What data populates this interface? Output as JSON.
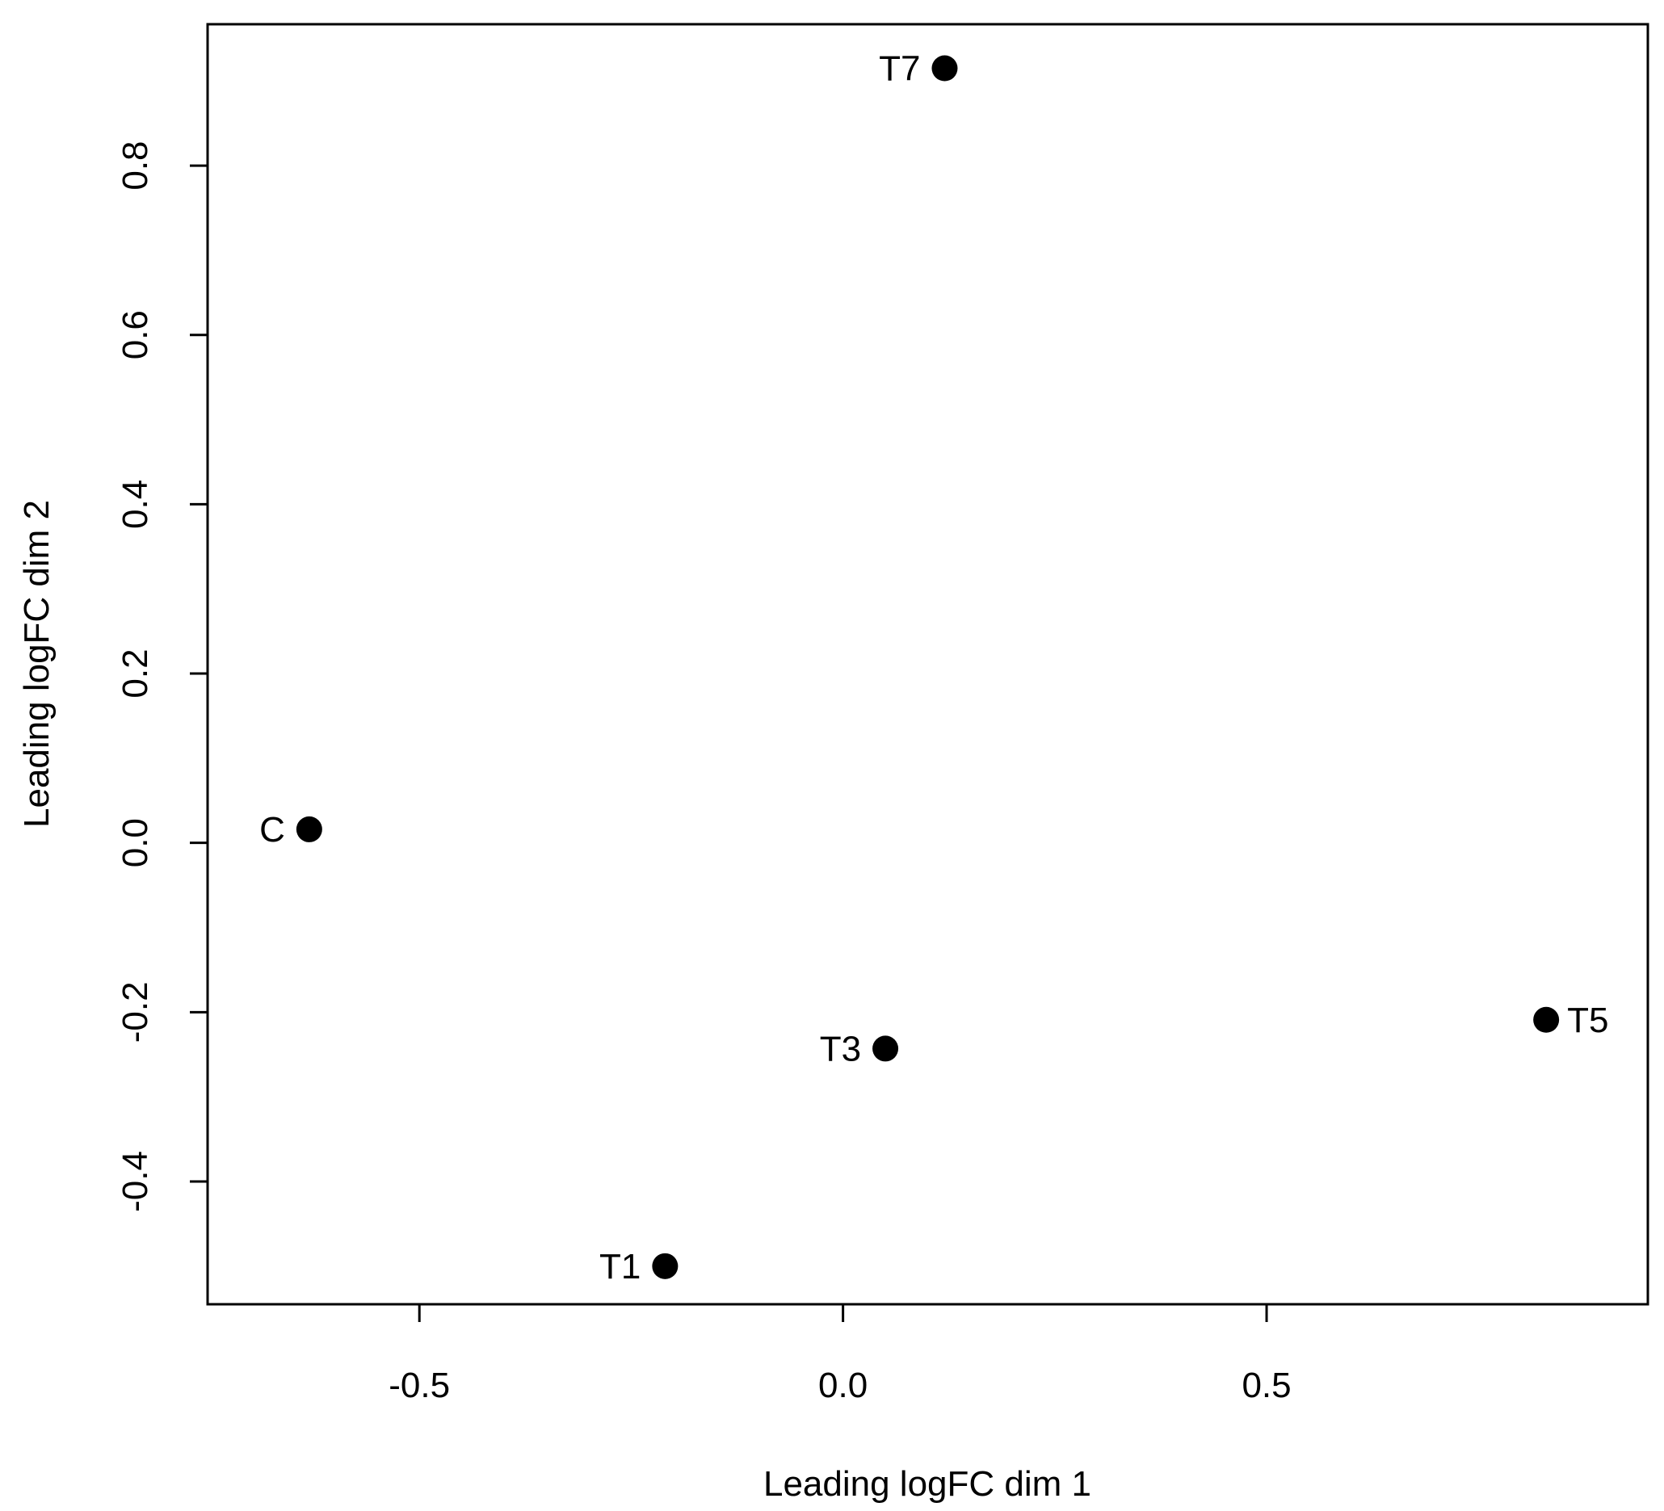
{
  "chart_data": {
    "type": "scatter",
    "title": "",
    "xlabel": "Leading logFC dim 1",
    "ylabel": "Leading logFC dim 2",
    "xlim": [
      -0.75,
      0.95
    ],
    "ylim": [
      -0.545,
      0.967
    ],
    "x_ticks": [
      {
        "value": -0.5,
        "label": "-0.5"
      },
      {
        "value": 0.0,
        "label": "0.0"
      },
      {
        "value": 0.5,
        "label": "0.5"
      }
    ],
    "y_ticks": [
      {
        "value": -0.4,
        "label": "-0.4"
      },
      {
        "value": -0.2,
        "label": "-0.2"
      },
      {
        "value": 0.0,
        "label": "0.0"
      },
      {
        "value": 0.2,
        "label": "0.2"
      },
      {
        "value": 0.4,
        "label": "0.4"
      },
      {
        "value": 0.6,
        "label": "0.6"
      },
      {
        "value": 0.8,
        "label": "0.8"
      }
    ],
    "grid": false,
    "points": [
      {
        "label": "C",
        "x": -0.63,
        "y": 0.016,
        "label_side": "left"
      },
      {
        "label": "T1",
        "x": -0.21,
        "y": -0.5,
        "label_side": "left"
      },
      {
        "label": "T3",
        "x": 0.05,
        "y": -0.243,
        "label_side": "left"
      },
      {
        "label": "T5",
        "x": 0.83,
        "y": -0.209,
        "label_side": "right"
      },
      {
        "label": "T7",
        "x": 0.12,
        "y": 0.915,
        "label_side": "left"
      }
    ],
    "marker_color": "#000000"
  }
}
